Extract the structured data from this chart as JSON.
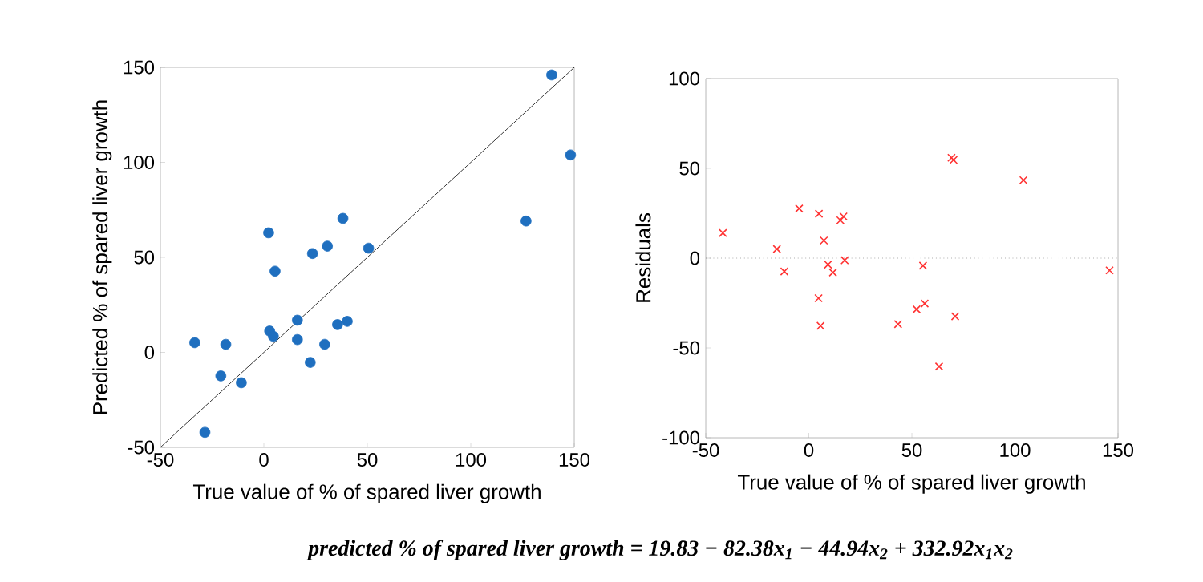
{
  "chart_data": [
    {
      "type": "scatter",
      "xlabel": "True value of % of spared liver growth",
      "ylabel": "Predicted % of spared liver growth",
      "xlim": [
        -50,
        150
      ],
      "ylim": [
        -50,
        150
      ],
      "xticks": [
        -50,
        0,
        50,
        100,
        150
      ],
      "yticks": [
        -50,
        0,
        50,
        100,
        150
      ],
      "series": [
        {
          "color": "#1f6fbf",
          "marker": "circle",
          "x": [
            -33.4,
            -18.4,
            -20.8,
            -10.9,
            -28.5,
            2.3,
            5.4,
            2.8,
            4.6,
            16.2,
            16.2,
            23.5,
            30.7,
            38.2,
            22.4,
            29.4,
            35.6,
            40.3,
            50.6,
            125.4,
            126.7,
            139.1,
            148.2
          ],
          "values": [
            5.1,
            4.2,
            -12.4,
            -16,
            -42.1,
            62.9,
            42.7,
            11.2,
            8.4,
            16.9,
            6.7,
            52,
            55.9,
            70.5,
            -5.3,
            4.2,
            14.6,
            16.3,
            54.8,
            null,
            69.1,
            146,
            103.9
          ]
        },
        {
          "type": "line",
          "color": "#000000",
          "marker": "none",
          "x": [
            -50,
            150
          ],
          "values": [
            -50,
            150
          ]
        }
      ],
      "annotations": [
        "predicted % of spared liver growth = 19.83 − 82.38x$_{1}$ − 44.94x$_{2}$ + 332.92x$_{1}$x$_{2}$"
      ]
    },
    {
      "type": "scatter",
      "xlabel": "True value of % of spared liver growth",
      "ylabel": "Residuals",
      "xlim": [
        -50,
        150
      ],
      "ylim": [
        -100,
        100
      ],
      "xticks": [
        -50,
        0,
        50,
        100,
        150
      ],
      "yticks": [
        -100,
        -50,
        0,
        50,
        100
      ],
      "ref_lines": [
        {
          "axis": "y",
          "value": 0,
          "color": "#808080",
          "line_style": "dotted"
        }
      ],
      "series": [
        {
          "color": "#ff3333",
          "marker": "cross",
          "x": [
            -41.7,
            -15.5,
            -11.9,
            -4.7,
            4.9,
            7.3,
            4.7,
            5.7,
            9.3,
            11.7,
            15.3,
            16.8,
            17.4,
            43.3,
            52.3,
            55.4,
            56.2,
            63.2,
            69.2,
            70.2,
            71,
            104.1,
            145.9
          ],
          "values": [
            14,
            5.1,
            -7.4,
            27.6,
            24.7,
            9.8,
            -22.3,
            -37.7,
            -3.6,
            -8,
            21.1,
            23.2,
            -1.2,
            -36.8,
            -28.5,
            -4.2,
            -25.3,
            -60.3,
            55.9,
            54.7,
            -32.4,
            43.4,
            -6.8
          ]
        }
      ]
    }
  ]
}
